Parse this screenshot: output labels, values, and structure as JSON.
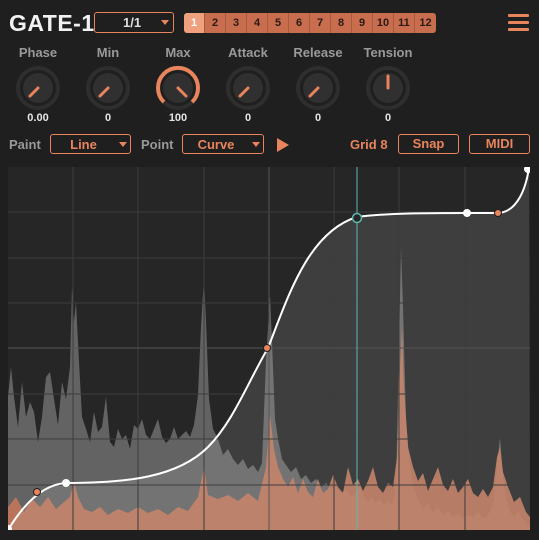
{
  "app": {
    "title": "GATE-1"
  },
  "sync": {
    "rate": "1/1"
  },
  "patterns": [
    "1",
    "2",
    "3",
    "4",
    "5",
    "6",
    "7",
    "8",
    "9",
    "10",
    "11",
    "12"
  ],
  "active_pattern": "1",
  "knobs": [
    {
      "label": "Phase",
      "value": "0.00"
    },
    {
      "label": "Min",
      "value": "0"
    },
    {
      "label": "Max",
      "value": "100"
    },
    {
      "label": "Attack",
      "value": "0"
    },
    {
      "label": "Release",
      "value": "0"
    },
    {
      "label": "Tension",
      "value": "0"
    }
  ],
  "controls": {
    "paint_label": "Paint",
    "paint_value": "Line",
    "point_label": "Point",
    "point_value": "Curve",
    "grid_label": "Grid 8",
    "snap_label": "Snap",
    "midi_label": "MIDI"
  },
  "colors": {
    "accent": "#e8855c",
    "background": "#1f1f1f",
    "curve": "#ffffff",
    "playhead": "#5fb8b0"
  },
  "icons": {
    "menu": "hamburger-menu-icon",
    "play": "play-icon"
  }
}
